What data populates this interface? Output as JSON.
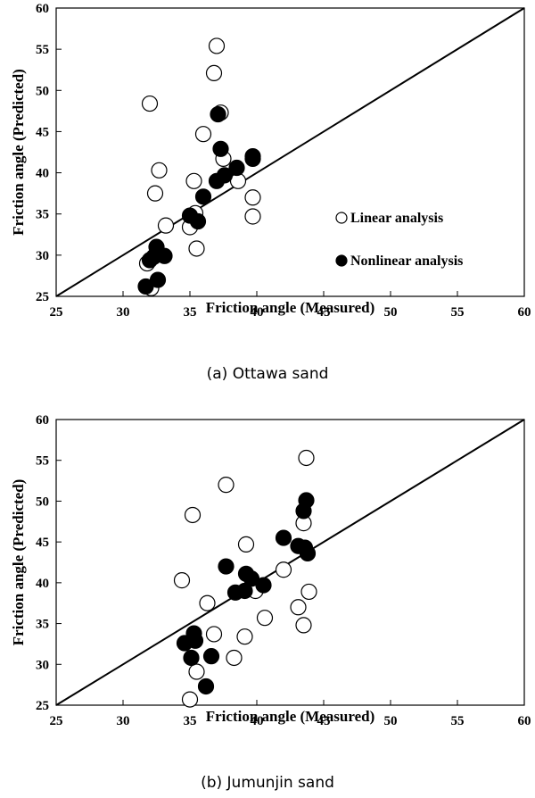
{
  "chart_data": [
    {
      "type": "scatter",
      "caption": "(a) Ottawa sand",
      "xlabel": "Friction angle (Measured)",
      "ylabel": "Friction angle (Predicted)",
      "xlim": [
        25,
        60
      ],
      "ylim": [
        25,
        60
      ],
      "xticks": [
        "25",
        "30",
        "35",
        "40",
        "45",
        "50",
        "55",
        "60"
      ],
      "yticks": [
        "25",
        "30",
        "35",
        "40",
        "45",
        "50",
        "55",
        "60"
      ],
      "grid": false,
      "legend_position": "right-middle",
      "reference_line": [
        [
          25,
          25
        ],
        [
          60,
          60
        ]
      ],
      "series": [
        {
          "name": "Linear analysis",
          "marker": "open-circle",
          "points": [
            [
              37.0,
              55.4
            ],
            [
              36.8,
              52.1
            ],
            [
              32.0,
              48.4
            ],
            [
              37.3,
              47.3
            ],
            [
              36.0,
              44.7
            ],
            [
              37.5,
              41.7
            ],
            [
              32.7,
              40.3
            ],
            [
              35.3,
              39.0
            ],
            [
              38.6,
              39.0
            ],
            [
              39.7,
              37.0
            ],
            [
              32.4,
              37.5
            ],
            [
              33.2,
              33.6
            ],
            [
              35.4,
              35.1
            ],
            [
              35.0,
              33.4
            ],
            [
              35.5,
              30.8
            ],
            [
              39.7,
              34.7
            ],
            [
              31.8,
              29.0
            ],
            [
              32.1,
              26.0
            ]
          ]
        },
        {
          "name": "Nonlinear analysis",
          "marker": "filled-circle",
          "points": [
            [
              37.1,
              47.1
            ],
            [
              37.3,
              42.9
            ],
            [
              39.7,
              41.7
            ],
            [
              39.7,
              42.0
            ],
            [
              38.5,
              40.6
            ],
            [
              37.6,
              39.7
            ],
            [
              37.0,
              39.0
            ],
            [
              36.0,
              37.1
            ],
            [
              35.0,
              34.8
            ],
            [
              35.6,
              34.1
            ],
            [
              32.5,
              31.0
            ],
            [
              32.3,
              29.8
            ],
            [
              33.1,
              29.9
            ],
            [
              32.0,
              29.4
            ],
            [
              32.6,
              27.0
            ],
            [
              31.7,
              26.2
            ]
          ]
        }
      ]
    },
    {
      "type": "scatter",
      "caption": "(b) Jumunjin sand",
      "xlabel": "Friction angle (Measured)",
      "ylabel": "Friction angle (Predicted)",
      "xlim": [
        25,
        60
      ],
      "ylim": [
        25,
        60
      ],
      "xticks": [
        "25",
        "30",
        "35",
        "40",
        "45",
        "50",
        "55",
        "60"
      ],
      "yticks": [
        "25",
        "30",
        "35",
        "40",
        "45",
        "50",
        "55",
        "60"
      ],
      "grid": false,
      "reference_line": [
        [
          25,
          25
        ],
        [
          60,
          60
        ]
      ],
      "series": [
        {
          "name": "Linear analysis",
          "marker": "open-circle",
          "points": [
            [
              43.7,
              55.3
            ],
            [
              37.7,
              52.0
            ],
            [
              35.2,
              48.3
            ],
            [
              43.5,
              47.3
            ],
            [
              39.2,
              44.7
            ],
            [
              42.0,
              41.6
            ],
            [
              34.4,
              40.3
            ],
            [
              39.9,
              39.0
            ],
            [
              43.9,
              38.9
            ],
            [
              36.3,
              37.5
            ],
            [
              43.1,
              37.0
            ],
            [
              40.6,
              35.7
            ],
            [
              43.5,
              34.8
            ],
            [
              36.8,
              33.7
            ],
            [
              39.1,
              33.4
            ],
            [
              35.5,
              29.1
            ],
            [
              38.3,
              30.8
            ],
            [
              35.0,
              25.7
            ]
          ]
        },
        {
          "name": "Nonlinear analysis",
          "marker": "filled-circle",
          "points": [
            [
              43.7,
              50.1
            ],
            [
              43.5,
              48.8
            ],
            [
              42.0,
              45.5
            ],
            [
              43.1,
              44.5
            ],
            [
              43.6,
              44.3
            ],
            [
              43.8,
              43.6
            ],
            [
              37.7,
              42.0
            ],
            [
              39.2,
              41.1
            ],
            [
              39.6,
              40.5
            ],
            [
              40.5,
              39.7
            ],
            [
              38.4,
              38.8
            ],
            [
              39.1,
              39.0
            ],
            [
              35.3,
              33.8
            ],
            [
              34.6,
              32.6
            ],
            [
              35.4,
              32.9
            ],
            [
              35.1,
              30.8
            ],
            [
              36.6,
              31.0
            ],
            [
              36.2,
              27.3
            ]
          ]
        }
      ]
    }
  ]
}
